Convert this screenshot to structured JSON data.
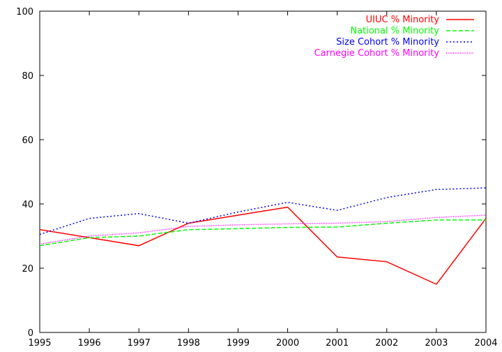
{
  "chart_data": {
    "type": "line",
    "x": [
      1995,
      1996,
      1997,
      1998,
      1999,
      2000,
      2001,
      2002,
      2003,
      2004
    ],
    "xlim": [
      1995,
      2004
    ],
    "ylim": [
      0,
      100
    ],
    "yticks": [
      0,
      20,
      40,
      60,
      80,
      100
    ],
    "xticks": [
      1995,
      1996,
      1997,
      1998,
      1999,
      2000,
      2001,
      2002,
      2003,
      2004
    ],
    "legend_position": "top-right",
    "grid": false,
    "series": [
      {
        "name": "UIUC % Minority",
        "color": "#ff0000",
        "dash": "solid",
        "values": [
          32,
          29.5,
          27,
          34,
          36.5,
          39,
          23.5,
          22,
          15,
          35.5
        ]
      },
      {
        "name": "National % Minority",
        "color": "#00ff00",
        "dash": "dashed",
        "values": [
          27,
          29.5,
          30,
          32,
          32.3,
          32.7,
          32.8,
          34,
          35,
          35
        ]
      },
      {
        "name": "Size Cohort % Minority",
        "color": "#0000ff",
        "dash": "dotted",
        "values": [
          30.5,
          35.5,
          37,
          34,
          37.5,
          40.5,
          38,
          42,
          44.5,
          45
        ]
      },
      {
        "name": "Carnegie Cohort % Minority",
        "color": "#ff00ff",
        "dash": "fine-dotted",
        "values": [
          27.5,
          30,
          31,
          33,
          33.5,
          33.8,
          34,
          34.5,
          35.8,
          36.5
        ]
      }
    ]
  }
}
